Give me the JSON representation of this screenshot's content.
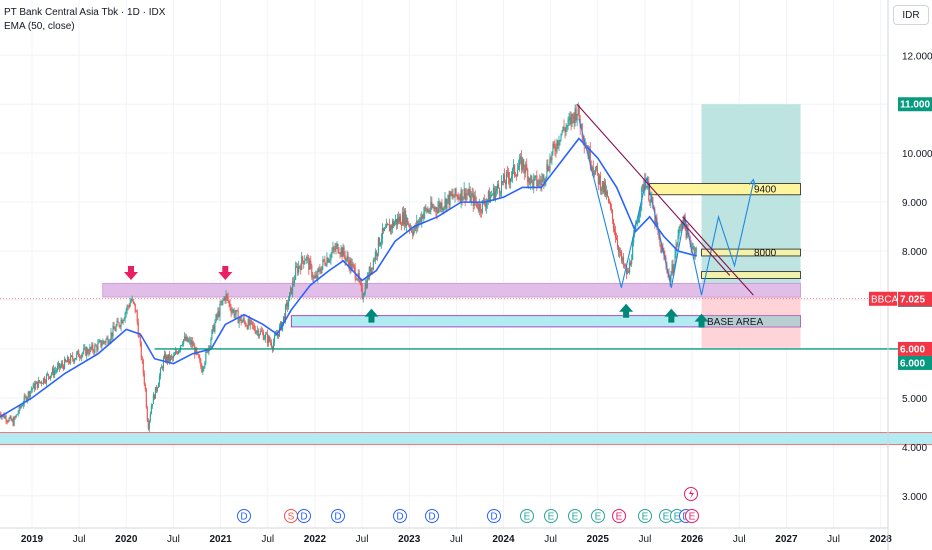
{
  "header": {
    "title": "PT Bank Central Asia Tbk · 1D · IDX",
    "indicator": "EMA (50, close)"
  },
  "currency_button": "IDR",
  "price_tags": {
    "target": "11.000",
    "symbol": "BBCA",
    "last": "7.025",
    "entry": "7.000",
    "stop1": "6.000",
    "stop2": "6.000"
  },
  "annotations": {
    "target1": "9400",
    "target2": "8000",
    "base": "BASE AREA"
  },
  "event_markers": [
    "D",
    "S",
    "D",
    "D",
    "D",
    "D",
    "D",
    "E",
    "E",
    "E",
    "E",
    "E",
    "E",
    "E",
    "E",
    "D",
    "E"
  ],
  "colors": {
    "up": "#26a69a",
    "down": "#ef5350",
    "ema": "#2962ff",
    "trendline": "#9c27b0",
    "support": "#e1bee7",
    "base_zone": "#b2ebf2",
    "target_zone": "#b2dfdb",
    "stop_zone": "#ffcdd2",
    "green_line": "#089981"
  },
  "chart_data": {
    "type": "candlestick",
    "title": "PT Bank Central Asia Tbk · 1D · IDX",
    "xlabel": "",
    "ylabel": "IDR",
    "ylim": [
      2700,
      12600
    ],
    "y_ticks": [
      3000,
      4000,
      5000,
      6000,
      7000,
      8000,
      9000,
      10000,
      11000,
      12000
    ],
    "y_tick_labels": [
      "3.000",
      "4.000",
      "5.000",
      "6.000",
      "7.000",
      "8.000",
      "9.000",
      "10.000",
      "11.000",
      "12.000"
    ],
    "x_ticks": [
      2019.0,
      2019.5,
      2020.0,
      2020.5,
      2021.0,
      2021.5,
      2022.0,
      2022.5,
      2023.0,
      2023.5,
      2024.0,
      2024.5,
      2025.0,
      2025.5,
      2026.0,
      2026.5,
      2027.0,
      2027.5,
      2028.0
    ],
    "x_tick_labels": [
      "2019",
      "Jul",
      "2020",
      "Jul",
      "2021",
      "Jul",
      "2022",
      "Jul",
      "2023",
      "Jul",
      "2024",
      "Jul",
      "2025",
      "Jul",
      "2026",
      "Jul",
      "2027",
      "Jul",
      "2028"
    ],
    "price_path": [
      [
        2018.65,
        4700
      ],
      [
        2018.8,
        4500
      ],
      [
        2018.9,
        4900
      ],
      [
        2019.0,
        5200
      ],
      [
        2019.2,
        5500
      ],
      [
        2019.35,
        5700
      ],
      [
        2019.5,
        5900
      ],
      [
        2019.65,
        6000
      ],
      [
        2019.8,
        6200
      ],
      [
        2019.95,
        6600
      ],
      [
        2020.05,
        7000
      ],
      [
        2020.1,
        6800
      ],
      [
        2020.15,
        6000
      ],
      [
        2020.2,
        5200
      ],
      [
        2020.23,
        4400
      ],
      [
        2020.27,
        4900
      ],
      [
        2020.32,
        5200
      ],
      [
        2020.4,
        5800
      ],
      [
        2020.5,
        5800
      ],
      [
        2020.6,
        6200
      ],
      [
        2020.7,
        6100
      ],
      [
        2020.8,
        5600
      ],
      [
        2020.85,
        5900
      ],
      [
        2020.95,
        6600
      ],
      [
        2021.05,
        7100
      ],
      [
        2021.12,
        6800
      ],
      [
        2021.2,
        6600
      ],
      [
        2021.3,
        6500
      ],
      [
        2021.45,
        6300
      ],
      [
        2021.55,
        6100
      ],
      [
        2021.6,
        6300
      ],
      [
        2021.65,
        6500
      ],
      [
        2021.75,
        7200
      ],
      [
        2021.8,
        7600
      ],
      [
        2021.9,
        7900
      ],
      [
        2022.0,
        7400
      ],
      [
        2022.1,
        7800
      ],
      [
        2022.25,
        8100
      ],
      [
        2022.35,
        7800
      ],
      [
        2022.45,
        7500
      ],
      [
        2022.5,
        7100
      ],
      [
        2022.6,
        7700
      ],
      [
        2022.7,
        8300
      ],
      [
        2022.85,
        8600
      ],
      [
        2022.95,
        8700
      ],
      [
        2023.05,
        8400
      ],
      [
        2023.15,
        8800
      ],
      [
        2023.3,
        8900
      ],
      [
        2023.45,
        9100
      ],
      [
        2023.6,
        9200
      ],
      [
        2023.75,
        8900
      ],
      [
        2023.9,
        9200
      ],
      [
        2024.05,
        9500
      ],
      [
        2024.2,
        9800
      ],
      [
        2024.3,
        9400
      ],
      [
        2024.4,
        9400
      ],
      [
        2024.5,
        9900
      ],
      [
        2024.6,
        10400
      ],
      [
        2024.7,
        10600
      ],
      [
        2024.78,
        10900
      ],
      [
        2024.83,
        10500
      ],
      [
        2024.9,
        10000
      ],
      [
        2025.0,
        9500
      ],
      [
        2025.08,
        9200
      ],
      [
        2025.15,
        8700
      ],
      [
        2025.25,
        7800
      ],
      [
        2025.32,
        7500
      ],
      [
        2025.38,
        8200
      ],
      [
        2025.45,
        9000
      ],
      [
        2025.5,
        9500
      ],
      [
        2025.58,
        8900
      ],
      [
        2025.66,
        8100
      ],
      [
        2025.72,
        7800
      ],
      [
        2025.76,
        7400
      ],
      [
        2025.8,
        7700
      ],
      [
        2025.85,
        8300
      ],
      [
        2025.9,
        8700
      ],
      [
        2025.95,
        8300
      ],
      [
        2026.0,
        8100
      ],
      [
        2026.05,
        8000
      ]
    ],
    "ema_path": [
      [
        2018.65,
        4600
      ],
      [
        2019.0,
        5000
      ],
      [
        2019.35,
        5500
      ],
      [
        2019.7,
        5900
      ],
      [
        2020.0,
        6400
      ],
      [
        2020.15,
        6300
      ],
      [
        2020.3,
        5800
      ],
      [
        2020.5,
        5700
      ],
      [
        2020.7,
        5900
      ],
      [
        2020.9,
        6000
      ],
      [
        2021.05,
        6500
      ],
      [
        2021.25,
        6700
      ],
      [
        2021.45,
        6500
      ],
      [
        2021.6,
        6300
      ],
      [
        2021.75,
        6800
      ],
      [
        2021.95,
        7300
      ],
      [
        2022.15,
        7600
      ],
      [
        2022.3,
        7800
      ],
      [
        2022.5,
        7400
      ],
      [
        2022.65,
        7600
      ],
      [
        2022.85,
        8200
      ],
      [
        2023.05,
        8500
      ],
      [
        2023.3,
        8700
      ],
      [
        2023.55,
        9000
      ],
      [
        2023.8,
        9000
      ],
      [
        2024.0,
        9100
      ],
      [
        2024.2,
        9300
      ],
      [
        2024.4,
        9300
      ],
      [
        2024.6,
        9800
      ],
      [
        2024.8,
        10300
      ],
      [
        2025.0,
        9900
      ],
      [
        2025.2,
        9300
      ],
      [
        2025.4,
        8400
      ],
      [
        2025.55,
        8700
      ],
      [
        2025.7,
        8300
      ],
      [
        2025.85,
        8000
      ],
      [
        2026.05,
        7900
      ]
    ],
    "zigzag_path": [
      [
        2024.8,
        10700
      ],
      [
        2025.25,
        7250
      ],
      [
        2025.52,
        9500
      ],
      [
        2025.78,
        7250
      ],
      [
        2025.92,
        8700
      ],
      [
        2026.1,
        7100
      ]
    ],
    "projection_path": [
      [
        2026.1,
        7100
      ],
      [
        2026.28,
        8700
      ],
      [
        2026.45,
        7700
      ],
      [
        2026.65,
        9400
      ]
    ],
    "trendlines": [
      [
        [
          2024.78,
          11000
        ],
        [
          2026.4,
          7500
        ]
      ],
      [
        [
          2025.9,
          8700
        ],
        [
          2026.65,
          7100
        ]
      ]
    ],
    "zones": [
      {
        "name": "support-zone",
        "y": [
          7060,
          7340
        ],
        "x": [
          2019.75,
          2027.15
        ]
      },
      {
        "name": "base-zone",
        "y": [
          6450,
          6680
        ],
        "x": [
          2021.75,
          2027.15
        ]
      },
      {
        "name": "target-zone",
        "y": [
          7140,
          11000
        ],
        "x": [
          2026.1,
          2027.15
        ]
      },
      {
        "name": "stop-zone",
        "y": [
          6020,
          7140
        ],
        "x": [
          2026.1,
          2027.15
        ]
      },
      {
        "name": "target1-zone",
        "y": [
          9150,
          9380
        ],
        "x": [
          2025.55,
          2027.15
        ]
      },
      {
        "name": "target2-zone",
        "y": [
          7900,
          8040
        ],
        "x": [
          2026.1,
          2027.15
        ]
      },
      {
        "name": "extra-zone",
        "y": [
          7440,
          7580
        ],
        "x": [
          2026.1,
          2027.15
        ]
      },
      {
        "name": "long-base-zone",
        "y": [
          4050,
          4290
        ],
        "x": [
          2018.65,
          2028.7
        ]
      }
    ],
    "green_line": {
      "y": 6000,
      "x": [
        2020.3,
        2028.95
      ]
    },
    "last_line": {
      "y": 7025
    },
    "down_arrows": [
      [
        2020.05,
        7450
      ],
      [
        2021.05,
        7450
      ]
    ],
    "up_arrows": [
      [
        2022.6,
        6700
      ],
      [
        2025.3,
        6800
      ],
      [
        2025.78,
        6700
      ],
      [
        2026.1,
        6600
      ]
    ]
  }
}
